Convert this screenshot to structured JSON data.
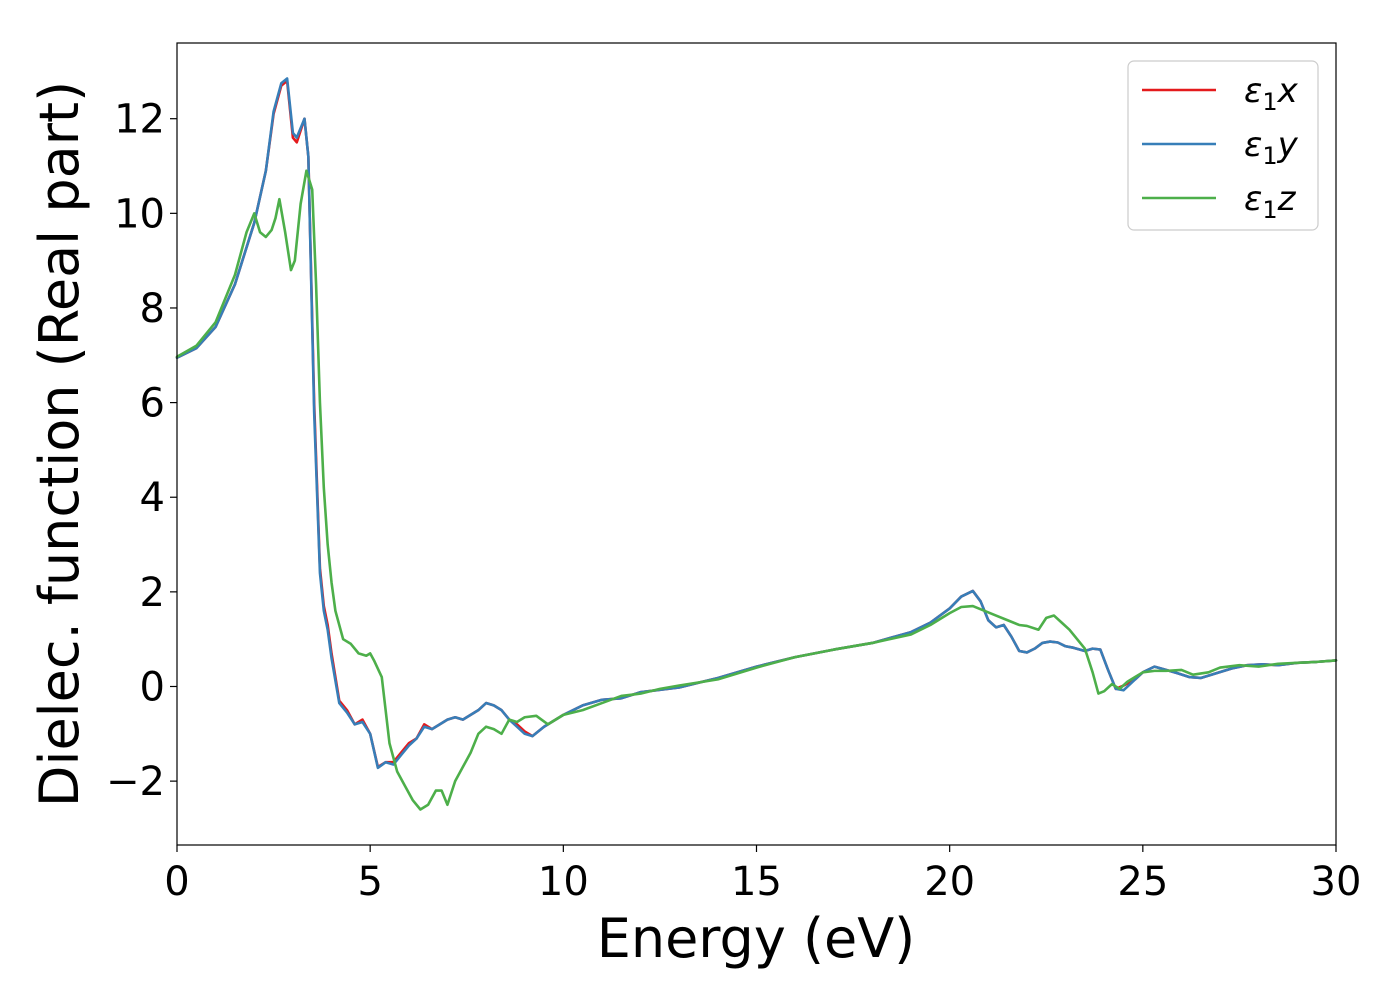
{
  "chart_data": {
    "type": "line",
    "xlabel": "Energy (eV)",
    "ylabel": "Dielec. function (Real part)",
    "xlim": [
      0,
      30
    ],
    "ylim": [
      -3.35,
      13.6
    ],
    "xticks": [
      0,
      5,
      10,
      15,
      20,
      25,
      30
    ],
    "yticks": [
      -2,
      0,
      2,
      4,
      6,
      8,
      10,
      12
    ],
    "xtick_labels": [
      "0",
      "5",
      "10",
      "15",
      "20",
      "25",
      "30"
    ],
    "ytick_labels": [
      "−2",
      "0",
      "2",
      "4",
      "6",
      "8",
      "10",
      "12"
    ],
    "grid": false,
    "legend_position": "top-right",
    "series": [
      {
        "name": "ε₁x",
        "legend_main": "ε",
        "legend_sub": "1",
        "legend_suffix": "x",
        "color": "#e41a1c",
        "x": [
          0,
          0.5,
          1.0,
          1.5,
          2.0,
          2.3,
          2.5,
          2.7,
          2.85,
          3.0,
          3.1,
          3.3,
          3.4,
          3.55,
          3.7,
          3.8,
          3.9,
          4.0,
          4.2,
          4.4,
          4.6,
          4.8,
          5.0,
          5.2,
          5.4,
          5.6,
          5.8,
          6.0,
          6.2,
          6.4,
          6.6,
          6.8,
          7.0,
          7.2,
          7.4,
          7.6,
          7.8,
          8.0,
          8.2,
          8.4,
          8.6,
          8.8,
          9.0,
          9.2,
          9.5,
          10.0,
          10.5,
          11.0,
          11.5,
          12.0,
          13.0,
          14.0,
          15.0,
          16.0,
          17.0,
          18.0,
          19.0,
          19.5,
          20.0,
          20.3,
          20.6,
          20.8,
          21.0,
          21.2,
          21.4,
          21.6,
          21.8,
          22.0,
          22.2,
          22.4,
          22.6,
          22.8,
          23.0,
          23.2,
          23.5,
          23.7,
          23.9,
          24.1,
          24.3,
          24.5,
          24.8,
          25.0,
          25.3,
          25.6,
          25.9,
          26.2,
          26.5,
          26.9,
          27.3,
          27.7,
          28.1,
          28.5,
          29.0,
          29.5,
          30.0
        ],
        "y": [
          6.95,
          7.15,
          7.6,
          8.5,
          9.8,
          10.9,
          12.1,
          12.7,
          12.8,
          11.6,
          11.5,
          12.0,
          11.2,
          6.0,
          2.5,
          1.7,
          1.3,
          0.7,
          -0.3,
          -0.5,
          -0.8,
          -0.7,
          -1.0,
          -1.7,
          -1.6,
          -1.6,
          -1.4,
          -1.2,
          -1.1,
          -0.8,
          -0.9,
          -0.8,
          -0.7,
          -0.65,
          -0.7,
          -0.6,
          -0.5,
          -0.35,
          -0.4,
          -0.5,
          -0.7,
          -0.8,
          -0.95,
          -1.05,
          -0.85,
          -0.6,
          -0.4,
          -0.28,
          -0.25,
          -0.12,
          -0.02,
          0.18,
          0.42,
          0.62,
          0.78,
          0.92,
          1.15,
          1.35,
          1.65,
          1.9,
          2.02,
          1.8,
          1.4,
          1.25,
          1.3,
          1.05,
          0.75,
          0.72,
          0.8,
          0.92,
          0.95,
          0.93,
          0.85,
          0.82,
          0.75,
          0.8,
          0.78,
          0.35,
          -0.05,
          0.02,
          0.15,
          0.3,
          0.42,
          0.35,
          0.28,
          0.2,
          0.18,
          0.28,
          0.38,
          0.45,
          0.47,
          0.45,
          0.5,
          0.52,
          0.55
        ]
      },
      {
        "name": "ε₁y",
        "legend_main": "ε",
        "legend_sub": "1",
        "legend_suffix": "y",
        "color": "#377eb8",
        "x": [
          0,
          0.5,
          1.0,
          1.5,
          2.0,
          2.3,
          2.5,
          2.7,
          2.85,
          3.0,
          3.1,
          3.3,
          3.4,
          3.55,
          3.7,
          3.8,
          3.9,
          4.0,
          4.2,
          4.4,
          4.6,
          4.8,
          5.0,
          5.2,
          5.4,
          5.6,
          5.8,
          6.0,
          6.2,
          6.4,
          6.6,
          6.8,
          7.0,
          7.2,
          7.4,
          7.6,
          7.8,
          8.0,
          8.2,
          8.4,
          8.6,
          8.8,
          9.0,
          9.2,
          9.5,
          10.0,
          10.5,
          11.0,
          11.5,
          12.0,
          13.0,
          14.0,
          15.0,
          16.0,
          17.0,
          18.0,
          19.0,
          19.5,
          20.0,
          20.3,
          20.6,
          20.8,
          21.0,
          21.2,
          21.4,
          21.6,
          21.8,
          22.0,
          22.2,
          22.4,
          22.6,
          22.8,
          23.0,
          23.2,
          23.5,
          23.7,
          23.9,
          24.1,
          24.3,
          24.5,
          24.8,
          25.0,
          25.3,
          25.6,
          25.9,
          26.2,
          26.5,
          26.9,
          27.3,
          27.7,
          28.1,
          28.5,
          29.0,
          29.5,
          30.0
        ],
        "y": [
          6.95,
          7.15,
          7.6,
          8.5,
          9.8,
          10.9,
          12.15,
          12.75,
          12.85,
          11.7,
          11.6,
          12.0,
          11.2,
          5.8,
          2.4,
          1.6,
          1.2,
          0.6,
          -0.35,
          -0.55,
          -0.8,
          -0.75,
          -1.0,
          -1.72,
          -1.6,
          -1.65,
          -1.45,
          -1.25,
          -1.1,
          -0.85,
          -0.9,
          -0.8,
          -0.7,
          -0.65,
          -0.7,
          -0.6,
          -0.5,
          -0.35,
          -0.4,
          -0.5,
          -0.7,
          -0.85,
          -1.0,
          -1.05,
          -0.85,
          -0.6,
          -0.4,
          -0.28,
          -0.25,
          -0.12,
          -0.02,
          0.18,
          0.42,
          0.62,
          0.78,
          0.92,
          1.15,
          1.35,
          1.65,
          1.9,
          2.02,
          1.8,
          1.4,
          1.25,
          1.3,
          1.05,
          0.75,
          0.72,
          0.8,
          0.92,
          0.95,
          0.93,
          0.85,
          0.82,
          0.75,
          0.8,
          0.78,
          0.35,
          -0.05,
          -0.08,
          0.15,
          0.3,
          0.42,
          0.35,
          0.28,
          0.2,
          0.18,
          0.28,
          0.38,
          0.45,
          0.47,
          0.45,
          0.5,
          0.52,
          0.55
        ]
      },
      {
        "name": "ε₁z",
        "legend_main": "ε",
        "legend_sub": "1",
        "legend_suffix": "z",
        "color": "#4daf4a",
        "x": [
          0,
          0.5,
          1.0,
          1.5,
          1.8,
          2.0,
          2.15,
          2.3,
          2.45,
          2.55,
          2.65,
          2.8,
          2.95,
          3.05,
          3.2,
          3.35,
          3.5,
          3.6,
          3.7,
          3.8,
          3.9,
          4.0,
          4.1,
          4.3,
          4.5,
          4.7,
          4.9,
          5.0,
          5.1,
          5.3,
          5.5,
          5.7,
          5.9,
          6.1,
          6.3,
          6.5,
          6.7,
          6.85,
          7.0,
          7.2,
          7.4,
          7.6,
          7.8,
          8.0,
          8.2,
          8.4,
          8.6,
          8.8,
          9.0,
          9.3,
          9.6,
          10.0,
          10.5,
          11.0,
          11.5,
          12.0,
          12.5,
          13.0,
          14.0,
          15.0,
          16.0,
          17.0,
          18.0,
          19.0,
          19.5,
          20.0,
          20.3,
          20.6,
          20.9,
          21.2,
          21.5,
          21.8,
          22.0,
          22.3,
          22.5,
          22.7,
          22.9,
          23.1,
          23.3,
          23.5,
          23.7,
          23.85,
          24.0,
          24.2,
          24.4,
          24.6,
          24.8,
          25.0,
          25.3,
          25.6,
          26.0,
          26.3,
          26.7,
          27.0,
          27.5,
          28.0,
          28.5,
          29.0,
          29.5,
          30.0
        ],
        "y": [
          6.97,
          7.2,
          7.7,
          8.7,
          9.6,
          10.0,
          9.6,
          9.5,
          9.65,
          9.9,
          10.3,
          9.6,
          8.8,
          9.0,
          10.2,
          10.9,
          10.5,
          8.5,
          6.0,
          4.2,
          3.0,
          2.2,
          1.6,
          1.0,
          0.9,
          0.7,
          0.65,
          0.7,
          0.55,
          0.2,
          -1.2,
          -1.8,
          -2.1,
          -2.4,
          -2.6,
          -2.5,
          -2.2,
          -2.2,
          -2.5,
          -2.0,
          -1.7,
          -1.4,
          -1.0,
          -0.85,
          -0.9,
          -1.0,
          -0.7,
          -0.75,
          -0.65,
          -0.62,
          -0.8,
          -0.6,
          -0.5,
          -0.35,
          -0.2,
          -0.15,
          -0.05,
          0.02,
          0.15,
          0.4,
          0.62,
          0.78,
          0.92,
          1.1,
          1.3,
          1.55,
          1.68,
          1.7,
          1.6,
          1.5,
          1.4,
          1.3,
          1.28,
          1.2,
          1.45,
          1.5,
          1.35,
          1.2,
          1.0,
          0.8,
          0.3,
          -0.15,
          -0.1,
          0.05,
          -0.05,
          0.1,
          0.2,
          0.3,
          0.33,
          0.33,
          0.35,
          0.25,
          0.3,
          0.4,
          0.45,
          0.42,
          0.48,
          0.5,
          0.52,
          0.55
        ]
      }
    ]
  }
}
